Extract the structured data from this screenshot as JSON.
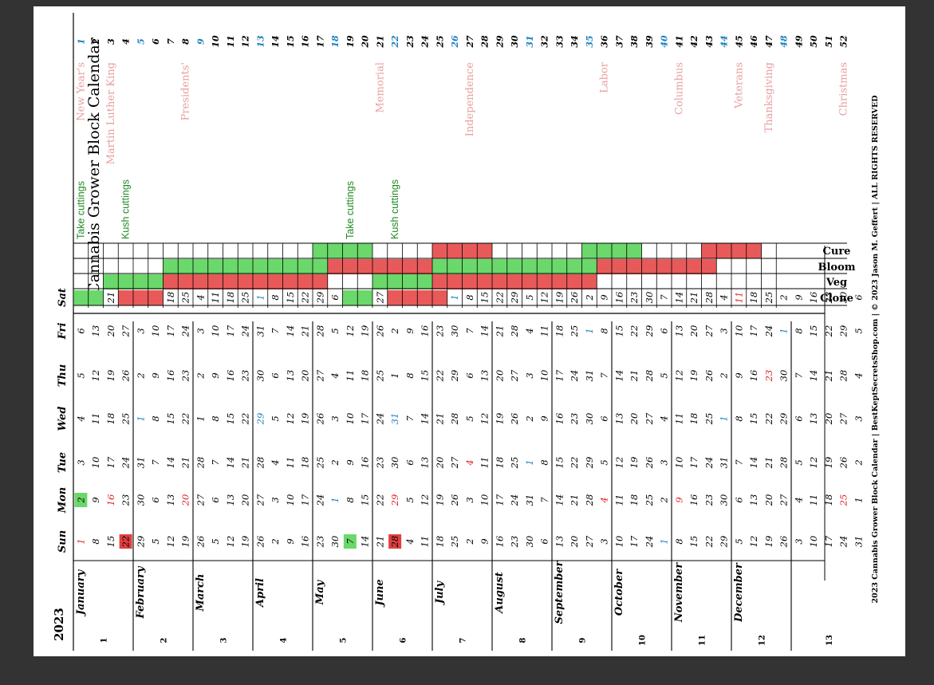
{
  "year": "2023",
  "title": "Cannabis Grower Block Calendar",
  "footer": "2023 Cannabis Grower Block Calendar | BestKeptSecretsShop.com | © 2023 Jason M. Geffert | ALL RIGHTS RESERVED",
  "day_headers": [
    "Sun",
    "Mon",
    "Tue",
    "Wed",
    "Thu",
    "Fri",
    "Sat"
  ],
  "track_labels": [
    "Clone",
    "Veg",
    "Bloom",
    "Cure"
  ],
  "colors": {
    "week_number": "#1a7fc0",
    "holiday_text": "#e8a0a0",
    "note_text": "#1f8a1f",
    "stage_red": "#e85a5a",
    "stage_green": "#6ad86a",
    "highlight_date": "#e02020"
  },
  "blocks": [
    "1",
    "2",
    "3",
    "4",
    "5",
    "6",
    "7",
    "8",
    "9",
    "10",
    "11",
    "12",
    "13"
  ],
  "months": [
    {
      "name": "January",
      "block": 0,
      "rows": [
        {
          "days": [
            "1",
            "2",
            "3",
            "4",
            "5",
            "6",
            "7"
          ],
          "week": "1"
        },
        {
          "days": [
            "8",
            "9",
            "10",
            "11",
            "12",
            "13",
            "14"
          ],
          "week": "2"
        },
        {
          "days": [
            "15",
            "16",
            "17",
            "18",
            "19",
            "20",
            "21"
          ],
          "week": "3"
        },
        {
          "days": [
            "22",
            "23",
            "24",
            "25",
            "26",
            "27",
            "28"
          ],
          "week": "4"
        }
      ]
    },
    {
      "name": "February",
      "block": 1,
      "rows": [
        {
          "days": [
            "29",
            "30",
            "31",
            "1",
            "2",
            "3",
            "4"
          ],
          "week": "5"
        },
        {
          "days": [
            "5",
            "6",
            "7",
            "8",
            "9",
            "10",
            "11"
          ],
          "week": "6"
        },
        {
          "days": [
            "12",
            "13",
            "14",
            "15",
            "16",
            "17",
            "18"
          ],
          "week": "7"
        },
        {
          "days": [
            "19",
            "20",
            "21",
            "22",
            "23",
            "24",
            "25"
          ],
          "week": "8"
        }
      ]
    },
    {
      "name": "March",
      "block": 2,
      "rows": [
        {
          "days": [
            "26",
            "27",
            "28",
            "1",
            "2",
            "3",
            "4"
          ],
          "week": "9"
        },
        {
          "days": [
            "5",
            "6",
            "7",
            "8",
            "9",
            "10",
            "11"
          ],
          "week": "10"
        },
        {
          "days": [
            "12",
            "13",
            "14",
            "15",
            "16",
            "17",
            "18"
          ],
          "week": "11"
        },
        {
          "days": [
            "19",
            "20",
            "21",
            "22",
            "23",
            "24",
            "25"
          ],
          "week": "12"
        }
      ]
    },
    {
      "name": "April",
      "block": 3,
      "rows": [
        {
          "days": [
            "26",
            "27",
            "28",
            "29",
            "30",
            "31",
            "1"
          ],
          "week": "13"
        },
        {
          "days": [
            "2",
            "3",
            "4",
            "5",
            "6",
            "7",
            "8"
          ],
          "week": "14"
        },
        {
          "days": [
            "9",
            "10",
            "11",
            "12",
            "13",
            "14",
            "15"
          ],
          "week": "15"
        },
        {
          "days": [
            "16",
            "17",
            "18",
            "19",
            "20",
            "21",
            "22"
          ],
          "week": "16"
        }
      ]
    },
    {
      "name": "May",
      "block": 4,
      "rows": [
        {
          "days": [
            "23",
            "24",
            "25",
            "26",
            "27",
            "28",
            "29"
          ],
          "week": "17"
        },
        {
          "days": [
            "30",
            "1",
            "2",
            "3",
            "4",
            "5",
            "6"
          ],
          "week": "18"
        },
        {
          "days": [
            "7",
            "8",
            "9",
            "10",
            "11",
            "12",
            "13"
          ],
          "week": "19"
        },
        {
          "days": [
            "14",
            "15",
            "16",
            "17",
            "18",
            "19",
            "20"
          ],
          "week": "20"
        }
      ]
    },
    {
      "name": "June",
      "block": 5,
      "rows": [
        {
          "days": [
            "21",
            "22",
            "23",
            "24",
            "25",
            "26",
            "27"
          ],
          "week": "21"
        },
        {
          "days": [
            "28",
            "29",
            "30",
            "31",
            "1",
            "2",
            "3"
          ],
          "week": "22"
        },
        {
          "days": [
            "4",
            "5",
            "6",
            "7",
            "8",
            "9",
            "10"
          ],
          "week": "23"
        },
        {
          "days": [
            "11",
            "12",
            "13",
            "14",
            "15",
            "16",
            "17"
          ],
          "week": "24"
        }
      ]
    },
    {
      "name": "July",
      "block": 6,
      "rows": [
        {
          "days": [
            "18",
            "19",
            "20",
            "21",
            "22",
            "23",
            "24"
          ],
          "week": "25"
        },
        {
          "days": [
            "25",
            "26",
            "27",
            "28",
            "29",
            "30",
            "1"
          ],
          "week": "26"
        },
        {
          "days": [
            "2",
            "3",
            "4",
            "5",
            "6",
            "7",
            "8"
          ],
          "week": "27"
        },
        {
          "days": [
            "9",
            "10",
            "11",
            "12",
            "13",
            "14",
            "15"
          ],
          "week": "28"
        }
      ]
    },
    {
      "name": "August",
      "block": 7,
      "rows": [
        {
          "days": [
            "16",
            "17",
            "18",
            "19",
            "20",
            "21",
            "22"
          ],
          "week": "29"
        },
        {
          "days": [
            "23",
            "24",
            "25",
            "26",
            "27",
            "28",
            "29"
          ],
          "week": "30"
        },
        {
          "days": [
            "30",
            "31",
            "1",
            "2",
            "3",
            "4",
            "5"
          ],
          "week": "31"
        },
        {
          "days": [
            "6",
            "7",
            "8",
            "9",
            "10",
            "11",
            "12"
          ],
          "week": "32"
        }
      ]
    },
    {
      "name": "September",
      "block": 8,
      "rows": [
        {
          "days": [
            "13",
            "14",
            "15",
            "16",
            "17",
            "18",
            "19"
          ],
          "week": "33"
        },
        {
          "days": [
            "20",
            "21",
            "22",
            "23",
            "24",
            "25",
            "26"
          ],
          "week": "34"
        },
        {
          "days": [
            "27",
            "28",
            "29",
            "30",
            "31",
            "1",
            "2"
          ],
          "week": "35"
        },
        {
          "days": [
            "3",
            "4",
            "5",
            "6",
            "7",
            "8",
            "9"
          ],
          "week": "36"
        }
      ]
    },
    {
      "name": "October",
      "block": 9,
      "rows": [
        {
          "days": [
            "10",
            "11",
            "12",
            "13",
            "14",
            "15",
            "16"
          ],
          "week": "37"
        },
        {
          "days": [
            "17",
            "18",
            "19",
            "20",
            "21",
            "22",
            "23"
          ],
          "week": "38"
        },
        {
          "days": [
            "24",
            "25",
            "26",
            "27",
            "28",
            "29",
            "30"
          ],
          "week": "39"
        },
        {
          "days": [
            "1",
            "2",
            "3",
            "4",
            "5",
            "6",
            "7"
          ],
          "week": "40"
        }
      ]
    },
    {
      "name": "November",
      "block": 10,
      "rows": [
        {
          "days": [
            "8",
            "9",
            "10",
            "11",
            "12",
            "13",
            "14"
          ],
          "week": "41"
        },
        {
          "days": [
            "15",
            "16",
            "17",
            "18",
            "19",
            "20",
            "21"
          ],
          "week": "42"
        },
        {
          "days": [
            "22",
            "23",
            "24",
            "25",
            "26",
            "27",
            "28"
          ],
          "week": "43"
        },
        {
          "days": [
            "29",
            "30",
            "31",
            "1",
            "2",
            "3",
            "4"
          ],
          "week": "44"
        }
      ]
    },
    {
      "name": "December",
      "block": 11,
      "rows": [
        {
          "days": [
            "5",
            "6",
            "7",
            "8",
            "9",
            "10",
            "11"
          ],
          "week": "45"
        },
        {
          "days": [
            "12",
            "13",
            "14",
            "15",
            "16",
            "17",
            "18"
          ],
          "week": "46"
        },
        {
          "days": [
            "19",
            "20",
            "21",
            "22",
            "23",
            "24",
            "25"
          ],
          "week": "47"
        },
        {
          "days": [
            "26",
            "27",
            "28",
            "29",
            "30",
            "1",
            "2"
          ],
          "week": "48"
        }
      ]
    },
    {
      "name": "",
      "block": 12,
      "rows": [
        {
          "days": [
            "3",
            "4",
            "5",
            "6",
            "7",
            "8",
            "9"
          ],
          "week": "49"
        },
        {
          "days": [
            "10",
            "11",
            "12",
            "13",
            "14",
            "15",
            "16"
          ],
          "week": "50"
        },
        {
          "days": [
            "17",
            "18",
            "19",
            "20",
            "21",
            "22",
            "23"
          ],
          "week": "51"
        },
        {
          "days": [
            "24",
            "25",
            "26",
            "27",
            "28",
            "29",
            "30"
          ],
          "week": "52"
        },
        {
          "days": [
            "31",
            "1",
            "2",
            "3",
            "4",
            "5",
            "6"
          ],
          "week": ""
        }
      ]
    }
  ],
  "holidays": [
    {
      "week": 0,
      "label": "New Year's"
    },
    {
      "week": 2,
      "label": "Martin Luther King"
    },
    {
      "week": 7,
      "label": "Presidents'"
    },
    {
      "week": 20,
      "label": "Memorial"
    },
    {
      "week": 26,
      "label": "Independence"
    },
    {
      "week": 35,
      "label": "Labor"
    },
    {
      "week": 40,
      "label": "Columbus"
    },
    {
      "week": 44,
      "label": "Veterans"
    },
    {
      "week": 46,
      "label": "Thanksgiving"
    },
    {
      "week": 51,
      "label": "Christmas"
    }
  ],
  "notes": [
    {
      "week": 0,
      "label": "Take cuttings"
    },
    {
      "week": 3,
      "label": "Kush cuttings"
    },
    {
      "week": 18,
      "label": "Take cuttings"
    },
    {
      "week": 21,
      "label": "Kush cuttings"
    }
  ],
  "schedule": {
    "Clone": [
      [
        0,
        "green"
      ],
      [
        1,
        "green"
      ],
      [
        3,
        "red"
      ],
      [
        4,
        "red"
      ],
      [
        5,
        "red"
      ],
      [
        18,
        "green"
      ],
      [
        19,
        "green"
      ],
      [
        21,
        "red"
      ],
      [
        22,
        "red"
      ],
      [
        23,
        "red"
      ],
      [
        24,
        "red"
      ]
    ],
    "Veg": [
      [
        2,
        "green"
      ],
      [
        3,
        "green"
      ],
      [
        4,
        "green"
      ],
      [
        5,
        "green"
      ],
      [
        6,
        "red"
      ],
      [
        7,
        "red"
      ],
      [
        8,
        "red"
      ],
      [
        9,
        "red"
      ],
      [
        10,
        "red"
      ],
      [
        11,
        "red"
      ],
      [
        12,
        "red"
      ],
      [
        13,
        "red"
      ],
      [
        14,
        "red"
      ],
      [
        15,
        "red"
      ],
      [
        16,
        "red"
      ],
      [
        20,
        "green"
      ],
      [
        21,
        "green"
      ],
      [
        22,
        "green"
      ],
      [
        23,
        "green"
      ],
      [
        24,
        "red"
      ],
      [
        25,
        "red"
      ],
      [
        26,
        "red"
      ],
      [
        27,
        "red"
      ],
      [
        28,
        "red"
      ],
      [
        29,
        "red"
      ],
      [
        30,
        "red"
      ],
      [
        31,
        "red"
      ],
      [
        32,
        "red"
      ],
      [
        33,
        "red"
      ],
      [
        34,
        "red"
      ]
    ],
    "Bloom": [
      [
        6,
        "green"
      ],
      [
        7,
        "green"
      ],
      [
        8,
        "green"
      ],
      [
        9,
        "green"
      ],
      [
        10,
        "green"
      ],
      [
        11,
        "green"
      ],
      [
        12,
        "green"
      ],
      [
        13,
        "green"
      ],
      [
        14,
        "green"
      ],
      [
        15,
        "green"
      ],
      [
        16,
        "green"
      ],
      [
        17,
        "red"
      ],
      [
        18,
        "red"
      ],
      [
        19,
        "red"
      ],
      [
        20,
        "red"
      ],
      [
        21,
        "red"
      ],
      [
        22,
        "red"
      ],
      [
        23,
        "red"
      ],
      [
        24,
        "green"
      ],
      [
        25,
        "green"
      ],
      [
        26,
        "green"
      ],
      [
        27,
        "green"
      ],
      [
        28,
        "green"
      ],
      [
        29,
        "green"
      ],
      [
        30,
        "green"
      ],
      [
        31,
        "green"
      ],
      [
        32,
        "green"
      ],
      [
        33,
        "green"
      ],
      [
        34,
        "green"
      ],
      [
        35,
        "red"
      ],
      [
        36,
        "red"
      ],
      [
        37,
        "red"
      ],
      [
        38,
        "red"
      ],
      [
        39,
        "red"
      ],
      [
        40,
        "red"
      ],
      [
        41,
        "red"
      ],
      [
        42,
        "red"
      ]
    ],
    "Cure": [
      [
        16,
        "green"
      ],
      [
        17,
        "green"
      ],
      [
        18,
        "green"
      ],
      [
        19,
        "green"
      ],
      [
        24,
        "red"
      ],
      [
        25,
        "red"
      ],
      [
        26,
        "red"
      ],
      [
        27,
        "red"
      ],
      [
        34,
        "green"
      ],
      [
        35,
        "green"
      ],
      [
        36,
        "green"
      ],
      [
        37,
        "green"
      ],
      [
        42,
        "red"
      ],
      [
        43,
        "red"
      ],
      [
        44,
        "red"
      ],
      [
        45,
        "red"
      ]
    ]
  },
  "highlights": [
    {
      "week": 0,
      "day": 0,
      "style": "red-text",
      "text": "1"
    },
    {
      "week": 0,
      "day": 1,
      "style": "green-box",
      "text": "2"
    },
    {
      "week": 2,
      "day": 1,
      "style": "red-text",
      "text": "16"
    },
    {
      "week": 3,
      "day": 0,
      "style": "red-box",
      "text": "22"
    },
    {
      "week": 7,
      "day": 1,
      "style": "red-text",
      "text": "20"
    },
    {
      "week": 18,
      "day": 0,
      "style": "green-box",
      "text": "7"
    },
    {
      "week": 21,
      "day": 0,
      "style": "red-box",
      "text": "28"
    },
    {
      "week": 21,
      "day": 1,
      "style": "red-text",
      "text": "29"
    },
    {
      "week": 26,
      "day": 2,
      "style": "red-text",
      "text": "4"
    },
    {
      "week": 35,
      "day": 1,
      "style": "red-text",
      "text": "4"
    },
    {
      "week": 40,
      "day": 1,
      "style": "red-text",
      "text": "9"
    },
    {
      "week": 44,
      "day": 6,
      "style": "red-text",
      "text": "11"
    },
    {
      "week": 46,
      "day": 4,
      "style": "red-text",
      "text": "23"
    },
    {
      "week": 51,
      "day": 1,
      "style": "red-text",
      "text": "25"
    }
  ],
  "blue_days": [
    {
      "week": 0,
      "day": 6
    },
    {
      "week": 4,
      "day": 3
    },
    {
      "week": 12,
      "day": 3
    },
    {
      "week": 12,
      "day": 6
    },
    {
      "week": 17,
      "day": 1
    },
    {
      "week": 21,
      "day": 3
    },
    {
      "week": 25,
      "day": 6
    },
    {
      "week": 30,
      "day": 2
    },
    {
      "week": 34,
      "day": 5
    },
    {
      "week": 39,
      "day": 0
    },
    {
      "week": 43,
      "day": 3
    },
    {
      "week": 47,
      "day": 5
    }
  ]
}
